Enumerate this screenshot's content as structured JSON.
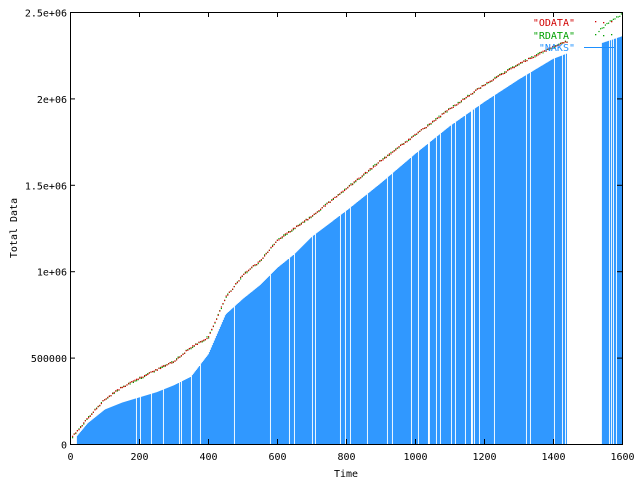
{
  "chart_data": {
    "type": "scatter",
    "title": "",
    "xlabel": "Time",
    "ylabel": "Total Data",
    "xlim": [
      0,
      1600
    ],
    "ylim": [
      0,
      2500000
    ],
    "x_ticks": [
      0,
      200,
      400,
      600,
      800,
      1000,
      1200,
      1400,
      1600
    ],
    "x_tick_labels": [
      "0",
      "200",
      "400",
      "600",
      "800",
      "1000",
      "1200",
      "1400",
      "1600"
    ],
    "y_ticks": [
      0,
      500000,
      1000000,
      1500000,
      2000000,
      2500000
    ],
    "y_tick_labels": [
      "0",
      "500000",
      "1e+06",
      "1.5e+06",
      "2e+06",
      "2.5e+06"
    ],
    "grid": false,
    "legend_position": "top-right",
    "series": [
      {
        "name": "\"ODATA\"",
        "style": "points",
        "color": "#d00000",
        "x": [
          5,
          50,
          100,
          150,
          200,
          250,
          300,
          350,
          400,
          450,
          500,
          550,
          600,
          650,
          700,
          800,
          900,
          1000,
          1100,
          1200,
          1300,
          1400,
          1440
        ],
        "y": [
          40000,
          150000,
          260000,
          330000,
          380000,
          430000,
          480000,
          560000,
          620000,
          850000,
          980000,
          1060000,
          1180000,
          1250000,
          1320000,
          1480000,
          1640000,
          1790000,
          1940000,
          2080000,
          2200000,
          2300000,
          2330000
        ]
      },
      {
        "name": "\"RDATA\"",
        "style": "points",
        "color": "#00a000",
        "x": [
          5,
          50,
          100,
          150,
          200,
          250,
          300,
          350,
          400,
          450,
          500,
          550,
          600,
          650,
          700,
          800,
          900,
          1000,
          1100,
          1200,
          1300,
          1400,
          1440,
          1530,
          1560,
          1600
        ],
        "y": [
          40000,
          150000,
          260000,
          330000,
          380000,
          430000,
          480000,
          560000,
          620000,
          850000,
          980000,
          1060000,
          1180000,
          1250000,
          1320000,
          1480000,
          1640000,
          1790000,
          1940000,
          2080000,
          2200000,
          2300000,
          2330000,
          2390000,
          2440000,
          2490000
        ]
      },
      {
        "name": "\"NAKS\"",
        "style": "impulses",
        "color": "#1e90ff",
        "x": [
          0,
          50,
          100,
          150,
          200,
          250,
          300,
          350,
          400,
          450,
          500,
          550,
          600,
          650,
          700,
          800,
          900,
          1000,
          1100,
          1200,
          1300,
          1400,
          1440,
          1540,
          1600
        ],
        "y": [
          0,
          120000,
          200000,
          240000,
          270000,
          300000,
          340000,
          390000,
          520000,
          750000,
          840000,
          920000,
          1020000,
          1100000,
          1200000,
          1350000,
          1510000,
          1680000,
          1840000,
          1980000,
          2110000,
          2230000,
          2260000,
          2320000,
          2360000
        ]
      }
    ]
  },
  "colors": {
    "axis": "#000000",
    "background": "#ffffff"
  }
}
